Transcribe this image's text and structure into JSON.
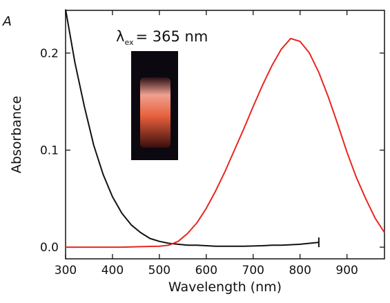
{
  "chart_data": {
    "type": "line",
    "panel_label": "A",
    "xlabel": "Wavelength (nm)",
    "ylabel": "Absorbance",
    "annotation": {
      "symbol": "λ",
      "subscript": "ex",
      "text": "= 365 nm"
    },
    "xlim": [
      300,
      980
    ],
    "ylim": [
      -0.012,
      0.244
    ],
    "xticks": [
      300,
      400,
      500,
      600,
      700,
      800,
      900
    ],
    "yticks": [
      {
        "value": 0,
        "label": "0.0"
      },
      0.1,
      0.2
    ],
    "series": [
      {
        "color": "#111111",
        "x": [
          300,
          320,
          340,
          360,
          380,
          400,
          420,
          440,
          460,
          480,
          500,
          520,
          540,
          560,
          580,
          600,
          620,
          640,
          660,
          680,
          700,
          720,
          740,
          760,
          780,
          800,
          820,
          840
        ],
        "values": [
          0.245,
          0.19,
          0.145,
          0.105,
          0.075,
          0.052,
          0.035,
          0.023,
          0.015,
          0.009,
          0.006,
          0.004,
          0.003,
          0.002,
          0.002,
          0.0015,
          0.001,
          0.001,
          0.001,
          0.001,
          0.0012,
          0.0015,
          0.002,
          0.002,
          0.0025,
          0.003,
          0.004,
          0.005
        ]
      },
      {
        "color": "#e8251f",
        "x": [
          300,
          320,
          340,
          360,
          380,
          400,
          420,
          440,
          460,
          480,
          500,
          520,
          540,
          560,
          580,
          600,
          620,
          640,
          660,
          680,
          700,
          720,
          740,
          760,
          780,
          800,
          820,
          840,
          860,
          880,
          900,
          920,
          940,
          960,
          980
        ],
        "values": [
          0.0,
          0.0,
          0.0,
          0.0,
          0.0,
          0.0,
          0.0,
          0.0003,
          0.0005,
          0.0008,
          0.001,
          0.002,
          0.006,
          0.014,
          0.025,
          0.04,
          0.058,
          0.078,
          0.1,
          0.122,
          0.145,
          0.167,
          0.187,
          0.204,
          0.215,
          0.212,
          0.2,
          0.18,
          0.155,
          0.127,
          0.098,
          0.072,
          0.05,
          0.03,
          0.015
        ]
      }
    ]
  }
}
